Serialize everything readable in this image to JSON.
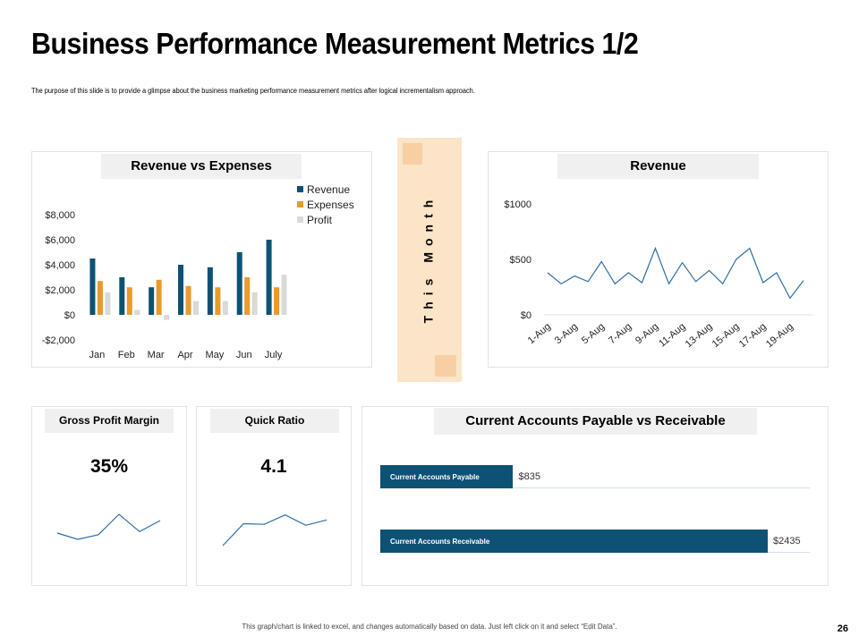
{
  "title": "Business Performance Measurement Metrics 1/2",
  "subtitle": "The purpose of this slide is to provide a glimpse about the business marketing performance measurement metrics after logical incrementalism approach.",
  "month_label": "This Month",
  "footer": "This graph/chart is linked to excel, and changes automatically based on data. Just left click on it and select “Edit Data”.",
  "page_number": "26",
  "colors": {
    "revenue": "#0d5275",
    "expenses": "#e99a2c",
    "profit": "#d9d9d9",
    "line": "#2f6fa6",
    "band": "#fbe4c8"
  },
  "gross_profit": {
    "title": "Gross Profit Margin",
    "value": "35%"
  },
  "quick_ratio": {
    "title": "Quick Ratio",
    "value": "4.1"
  },
  "payable_receivable": {
    "title": "Current Accounts Payable vs Receivable",
    "bars": [
      {
        "label": "Current Accounts Payable",
        "value": 835,
        "display": "$835"
      },
      {
        "label": "Current Accounts Receivable",
        "value": 2435,
        "display": "$2435"
      }
    ]
  },
  "chart_data": [
    {
      "type": "bar",
      "title": "Revenue vs Expenses",
      "categories": [
        "Jan",
        "Feb",
        "Mar",
        "Apr",
        "May",
        "Jun",
        "July"
      ],
      "series": [
        {
          "name": "Revenue",
          "values": [
            4500,
            3000,
            2200,
            4000,
            3800,
            5000,
            6000
          ]
        },
        {
          "name": "Expenses",
          "values": [
            2700,
            2200,
            2800,
            2300,
            2200,
            3000,
            2200
          ]
        },
        {
          "name": "Profit",
          "values": [
            1800,
            400,
            -400,
            1100,
            1100,
            1800,
            3200
          ]
        }
      ],
      "yticks": [
        -2000,
        0,
        2000,
        4000,
        6000,
        8000
      ],
      "ytick_labels": [
        "-$2,000",
        "$0",
        "$2,000",
        "$4,000",
        "$6,000",
        "$8,000"
      ],
      "ylim": [
        -2000,
        8000
      ],
      "legend": "top-right"
    },
    {
      "type": "line",
      "title": "Revenue",
      "x": [
        "1-Aug",
        "2-Aug",
        "3-Aug",
        "4-Aug",
        "5-Aug",
        "6-Aug",
        "7-Aug",
        "8-Aug",
        "9-Aug",
        "10-Aug",
        "11-Aug",
        "12-Aug",
        "13-Aug",
        "14-Aug",
        "15-Aug",
        "16-Aug",
        "17-Aug",
        "18-Aug",
        "19-Aug",
        "20-Aug"
      ],
      "tick_labels": [
        "1-Aug",
        "3-Aug",
        "5-Aug",
        "7-Aug",
        "9-Aug",
        "11-Aug",
        "13-Aug",
        "15-Aug",
        "17-Aug",
        "19-Aug"
      ],
      "values": [
        380,
        280,
        350,
        300,
        480,
        280,
        380,
        290,
        600,
        280,
        470,
        300,
        400,
        280,
        500,
        600,
        290,
        380,
        150,
        310
      ],
      "yticks": [
        0,
        500,
        1000
      ],
      "ytick_labels": [
        "$0",
        "$500",
        "$1000"
      ],
      "ylim": [
        0,
        1000
      ]
    },
    {
      "type": "line",
      "title": "Gross Profit Margin trend",
      "values": [
        0.4,
        0.2,
        0.35,
        1.0,
        0.45,
        0.8
      ],
      "ylim": [
        0,
        1
      ]
    },
    {
      "type": "line",
      "title": "Quick Ratio trend",
      "values": [
        0.0,
        0.7,
        0.68,
        0.98,
        0.65,
        0.82
      ],
      "ylim": [
        0,
        1
      ]
    }
  ]
}
